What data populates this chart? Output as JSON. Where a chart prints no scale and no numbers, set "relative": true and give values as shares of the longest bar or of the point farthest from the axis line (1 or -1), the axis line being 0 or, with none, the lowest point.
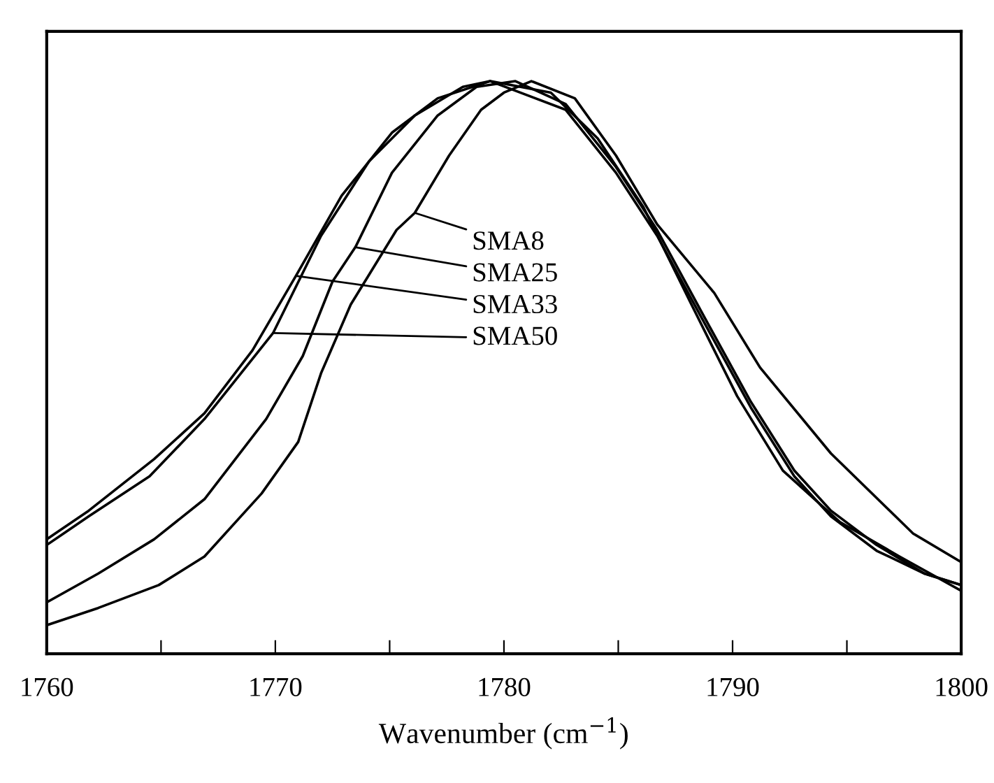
{
  "chart_data": {
    "type": "line",
    "xlabel": "Wavenumber (cm$^{−1}$)",
    "relative": true,
    "xlim": [
      1760,
      1800
    ],
    "xticks": [
      1760,
      {
        "value": 1765,
        "label": null
      },
      1770,
      {
        "value": 1775,
        "label": null
      },
      1780,
      {
        "value": 1785,
        "label": null
      },
      1790,
      {
        "value": 1795,
        "label": null
      },
      1800
    ],
    "tick_labels": "x",
    "grid": false,
    "legend": false,
    "marker": "none",
    "line_style": "solid",
    "series": [
      {
        "color": "#000000",
        "x": [
          1760,
          1762.25,
          1764.9,
          1766.9,
          1769.4,
          1771.0,
          1772.0,
          1773.3,
          1775.3,
          1776.1,
          1777.6,
          1779.0,
          1780.0,
          1781.2,
          1783.1,
          1784.9,
          1786.7,
          1789.2,
          1791.2,
          1794.3,
          1797.9,
          1800
        ],
        "values": [
          0.05,
          0.08,
          0.12,
          0.17,
          0.28,
          0.37,
          0.49,
          0.61,
          0.74,
          0.77,
          0.87,
          0.95,
          0.98,
          1.0,
          0.97,
          0.87,
          0.75,
          0.63,
          0.5,
          0.35,
          0.21,
          0.16
        ]
      },
      {
        "color": "#000000",
        "x": [
          1760,
          1762.25,
          1764.7,
          1766.9,
          1769.6,
          1771.2,
          1772.5,
          1773.5,
          1775.1,
          1777.1,
          1778.8,
          1780.5,
          1782.7,
          1784.9,
          1786.7,
          1788.6,
          1790.8,
          1792.7,
          1794.3,
          1796.3,
          1798.4,
          1800
        ],
        "values": [
          0.09,
          0.14,
          0.2,
          0.27,
          0.41,
          0.52,
          0.65,
          0.71,
          0.84,
          0.94,
          0.99,
          1.0,
          0.96,
          0.85,
          0.74,
          0.6,
          0.44,
          0.32,
          0.25,
          0.19,
          0.14,
          0.12
        ]
      },
      {
        "color": "#000000",
        "x": [
          1760,
          1761.84,
          1764.7,
          1766.9,
          1769.0,
          1770.9,
          1772.9,
          1775.1,
          1777.1,
          1779.4,
          1782.05,
          1784.1,
          1786.1,
          1788.2,
          1790.2,
          1792.2,
          1794.7,
          1797.3,
          1800
        ],
        "values": [
          0.2,
          0.25,
          0.34,
          0.42,
          0.53,
          0.66,
          0.8,
          0.91,
          0.97,
          1.0,
          0.98,
          0.9,
          0.78,
          0.61,
          0.45,
          0.32,
          0.23,
          0.17,
          0.11
        ]
      },
      {
        "color": "#000000",
        "x": [
          1760,
          1761.84,
          1764.5,
          1766.9,
          1769.9,
          1772.0,
          1774.1,
          1776.1,
          1778.2,
          1779.4,
          1782.7,
          1784.9,
          1786.7,
          1788.6,
          1790.8,
          1792.7,
          1794.3,
          1796.3,
          1798.4,
          1800
        ],
        "values": [
          0.19,
          0.24,
          0.31,
          0.41,
          0.56,
          0.73,
          0.86,
          0.94,
          0.99,
          1.0,
          0.95,
          0.84,
          0.73,
          0.59,
          0.43,
          0.31,
          0.24,
          0.18,
          0.14,
          0.12
        ]
      }
    ],
    "annotations": [
      {
        "text": "SMA8",
        "x": 1776.1,
        "y": 0.77
      },
      {
        "text": "SMA25",
        "x": 1773.5,
        "y": 0.71
      },
      {
        "text": "SMA33",
        "x": 1770.9,
        "y": 0.66
      },
      {
        "text": "SMA50",
        "x": 1769.9,
        "y": 0.56
      }
    ]
  }
}
